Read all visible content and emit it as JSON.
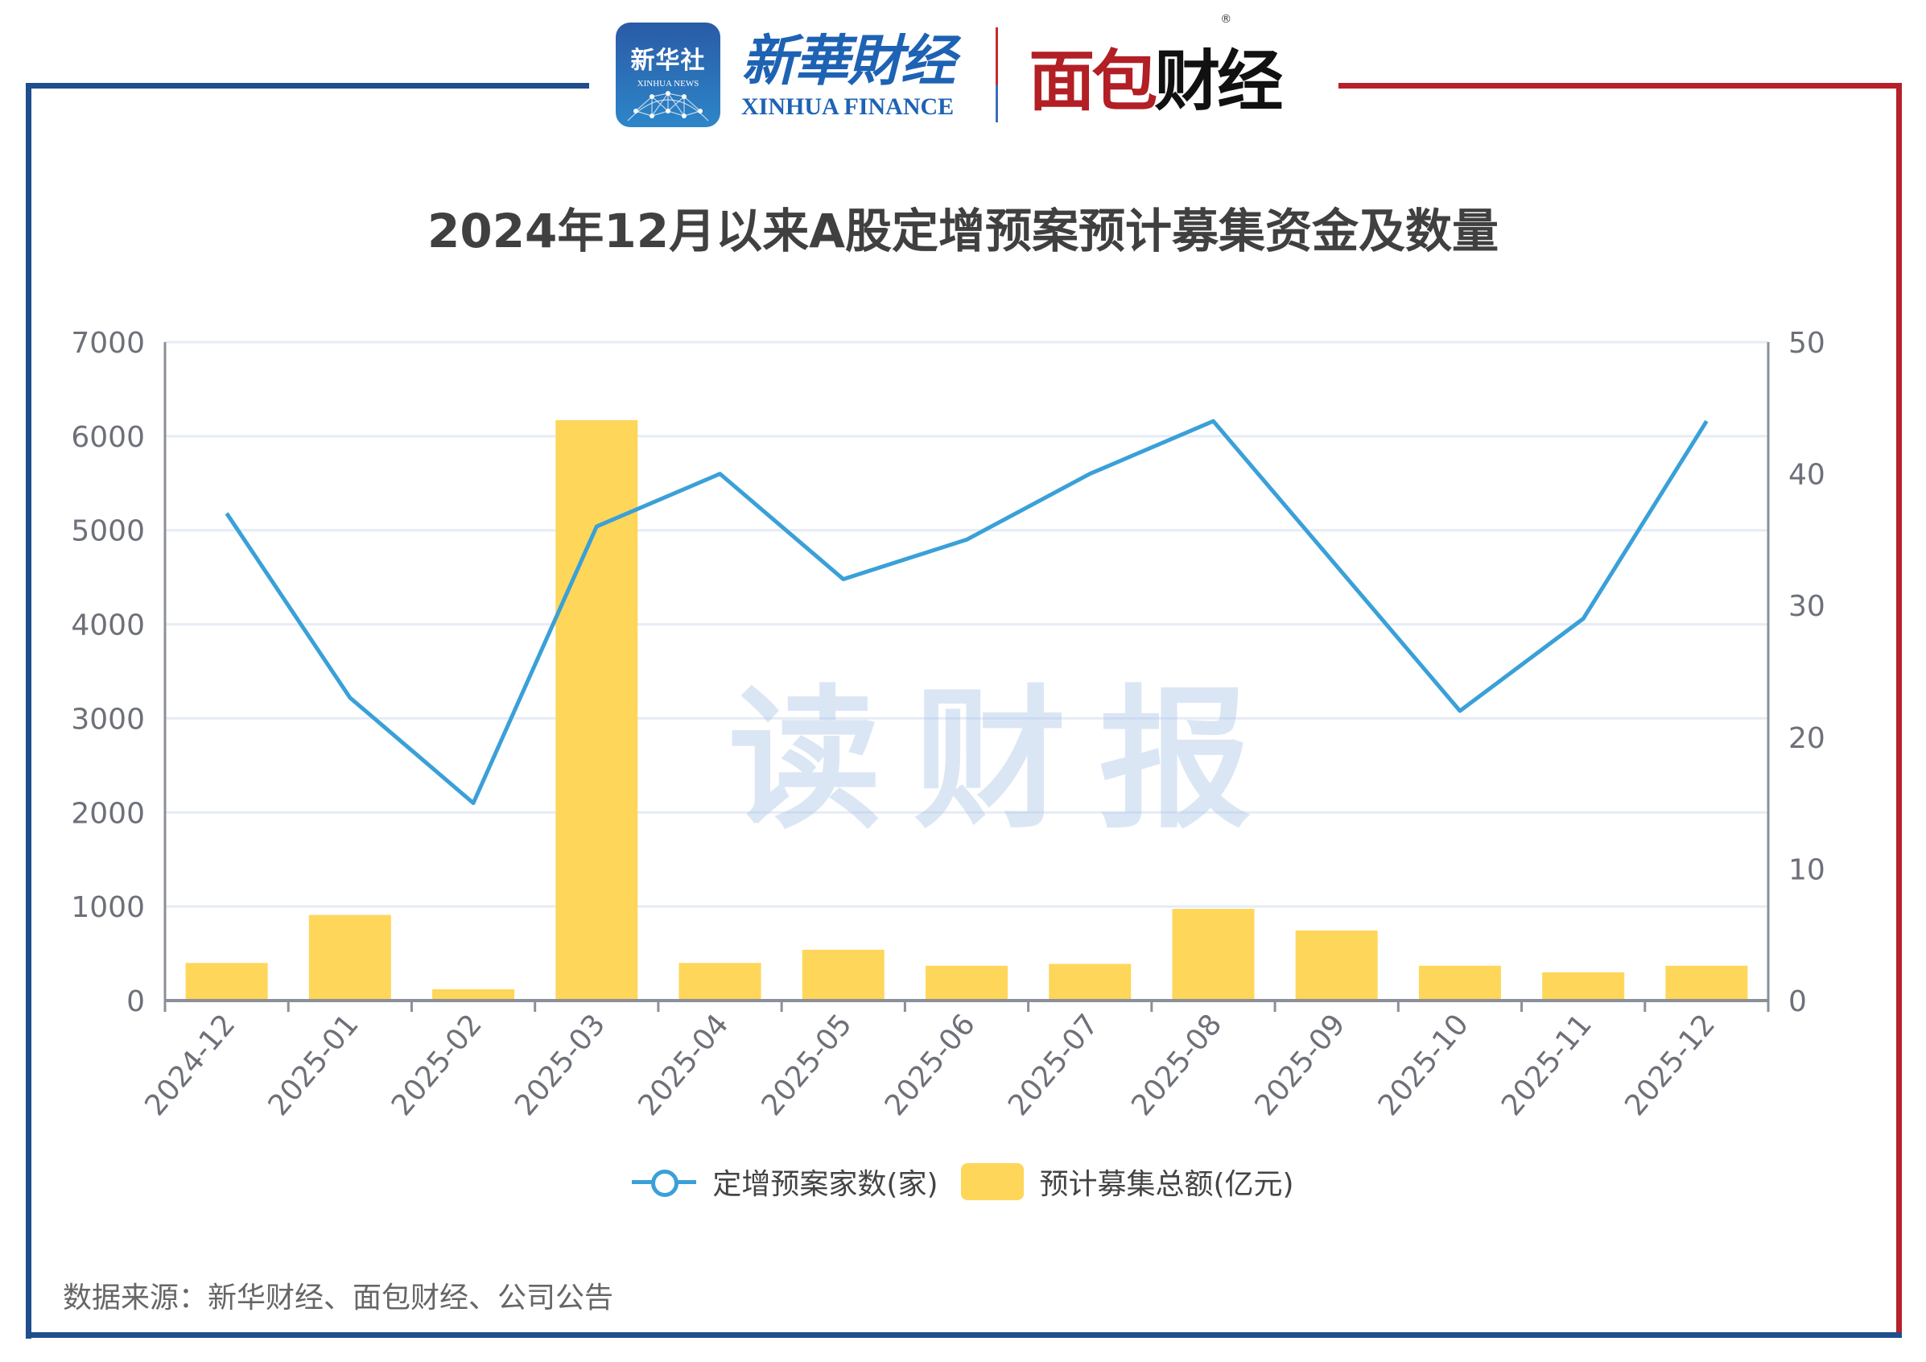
{
  "header": {
    "logo_xinhua_app": {
      "cn": "新华社",
      "en": "XINHUA NEWS"
    },
    "logo_xinhua_finance": {
      "cn": "新華財经",
      "en": "XINHUA FINANCE"
    },
    "logo_mianbao": {
      "part1": "面包",
      "part2": "财经",
      "registered": "®"
    }
  },
  "title": "2024年12月以来A股定增预案预计募集资金及数量",
  "watermark": "读财报",
  "legend": {
    "line_label": "定增预案家数(家)",
    "bar_label": "预计募集总额(亿元)"
  },
  "source": "数据来源：新华财经、面包财经、公司公告",
  "colors": {
    "bar": "#fed65a",
    "line": "#3aa0d8",
    "frame_left": "#1f4e8c",
    "frame_right": "#b7202a",
    "grid": "#e6ecf5",
    "axis": "#8a8f99",
    "tick_text": "#6e7079"
  },
  "chart_data": {
    "type": "bar+line",
    "title": "2024年12月以来A股定增预案预计募集资金及数量",
    "categories": [
      "2024-12",
      "2025-01",
      "2025-02",
      "2025-03",
      "2025-04",
      "2025-05",
      "2025-06",
      "2025-07",
      "2025-08",
      "2025-09",
      "2025-10",
      "2025-11",
      "2025-12"
    ],
    "series": [
      {
        "name": "预计募集总额(亿元)",
        "type": "bar",
        "axis": "left",
        "values": [
          400,
          910,
          120,
          6170,
          400,
          540,
          370,
          390,
          975,
          745,
          370,
          300,
          370
        ]
      },
      {
        "name": "定增预案家数(家)",
        "type": "line",
        "axis": "right",
        "values": [
          37,
          23,
          15,
          36,
          40,
          32,
          35,
          40,
          44,
          33,
          22,
          29,
          44
        ]
      }
    ],
    "left_axis": {
      "min": 0,
      "max": 7000,
      "ticks": [
        "0",
        "1000",
        "2000",
        "3000",
        "4000",
        "5000",
        "6000",
        "7000"
      ]
    },
    "right_axis": {
      "min": 0,
      "max": 50,
      "ticks": [
        "0",
        "10",
        "20",
        "30",
        "40",
        "50"
      ]
    },
    "xlabel": "",
    "ylabel_left": "",
    "ylabel_right": "",
    "grid": true,
    "legend_position": "bottom"
  }
}
